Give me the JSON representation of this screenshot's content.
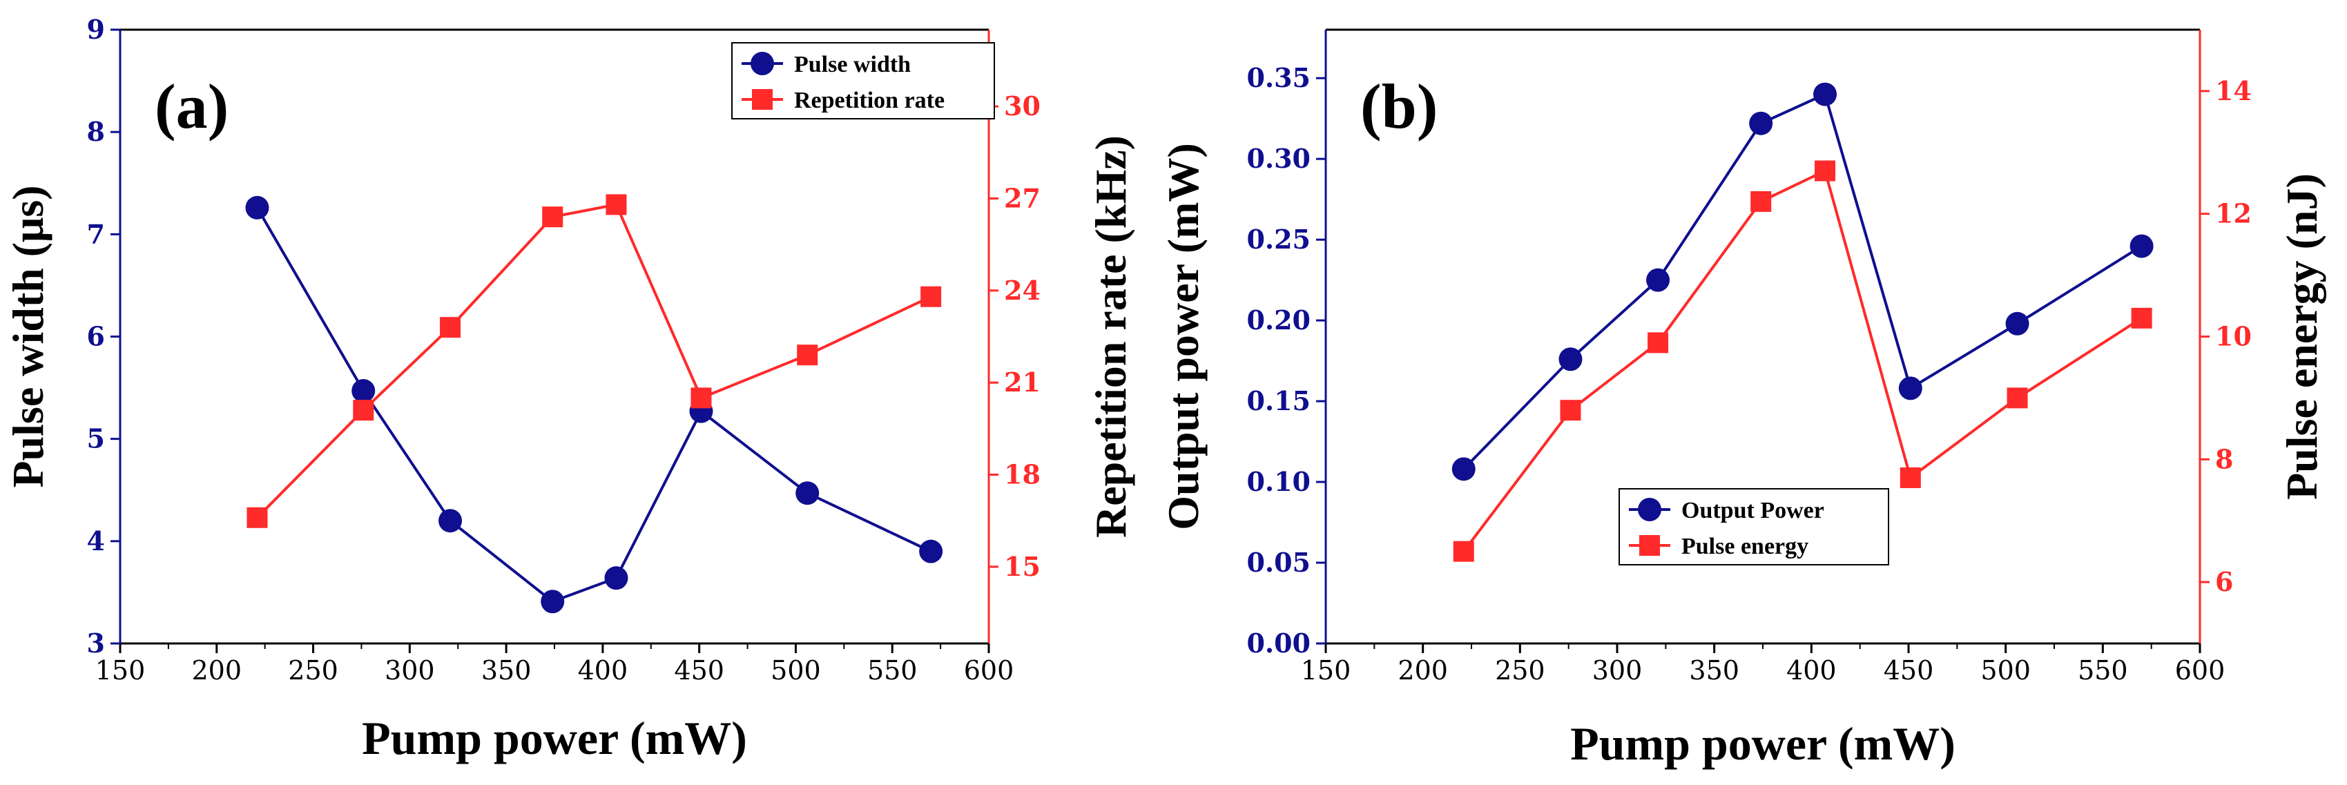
{
  "colors": {
    "blue": "#0f0f8f",
    "red": "#ff2a2a",
    "frame": "#000000"
  },
  "chart_data": [
    {
      "type": "line",
      "panel_label": "(a)",
      "xlabel": "Pump power (mW)",
      "ylabel_left": "Pulse width (μs)",
      "ylabel_right": "Repetition rate (kHz)",
      "xlim": [
        150,
        600
      ],
      "ylim_left": [
        3,
        9
      ],
      "ylim_right": [
        12.5,
        32.5
      ],
      "xticks": [
        150,
        200,
        250,
        300,
        350,
        400,
        450,
        500,
        550,
        600
      ],
      "yticks_left": [
        3,
        4,
        5,
        6,
        7,
        8,
        9
      ],
      "yticks_right": [
        15,
        18,
        21,
        24,
        27,
        30
      ],
      "legend_position": "top-right",
      "series": [
        {
          "name": "Pulse width",
          "axis": "left",
          "marker": "circle",
          "color": "#0f0f8f",
          "x": [
            221,
            276,
            321,
            374,
            407,
            451,
            506,
            570
          ],
          "values": [
            7.26,
            5.47,
            4.2,
            3.41,
            3.64,
            5.27,
            4.47,
            3.9
          ]
        },
        {
          "name": "Repetition rate",
          "axis": "right",
          "marker": "square",
          "color": "#ff2a2a",
          "x": [
            221,
            276,
            321,
            374,
            407,
            451,
            506,
            570
          ],
          "values": [
            16.6,
            20.1,
            22.8,
            26.4,
            26.8,
            20.5,
            21.9,
            23.8
          ]
        }
      ]
    },
    {
      "type": "line",
      "panel_label": "(b)",
      "xlabel": "Pump power (mW)",
      "ylabel_left": "Output power (mW)",
      "ylabel_right": "Pulse energy (nJ)",
      "xlim": [
        150,
        600
      ],
      "ylim_left": [
        0,
        0.38
      ],
      "ylim_right": [
        5,
        15
      ],
      "xticks": [
        150,
        200,
        250,
        300,
        350,
        400,
        450,
        500,
        550,
        600
      ],
      "yticks_left": [
        "0.00",
        "0.05",
        "0.10",
        "0.15",
        "0.20",
        "0.25",
        "0.30",
        "0.35"
      ],
      "yticks_right": [
        6,
        8,
        10,
        12,
        14
      ],
      "legend_position": "center-left",
      "series": [
        {
          "name": "Output Power",
          "axis": "left",
          "marker": "circle",
          "color": "#0f0f8f",
          "x": [
            221,
            276,
            321,
            374,
            407,
            451,
            506,
            570
          ],
          "values": [
            0.108,
            0.176,
            0.225,
            0.322,
            0.34,
            0.158,
            0.198,
            0.246
          ]
        },
        {
          "name": "Pulse energy",
          "axis": "right",
          "marker": "square",
          "color": "#ff2a2a",
          "x": [
            221,
            276,
            321,
            374,
            407,
            451,
            506,
            570
          ],
          "values": [
            6.5,
            8.8,
            9.9,
            12.2,
            12.7,
            7.7,
            9.0,
            10.3
          ]
        }
      ]
    }
  ]
}
